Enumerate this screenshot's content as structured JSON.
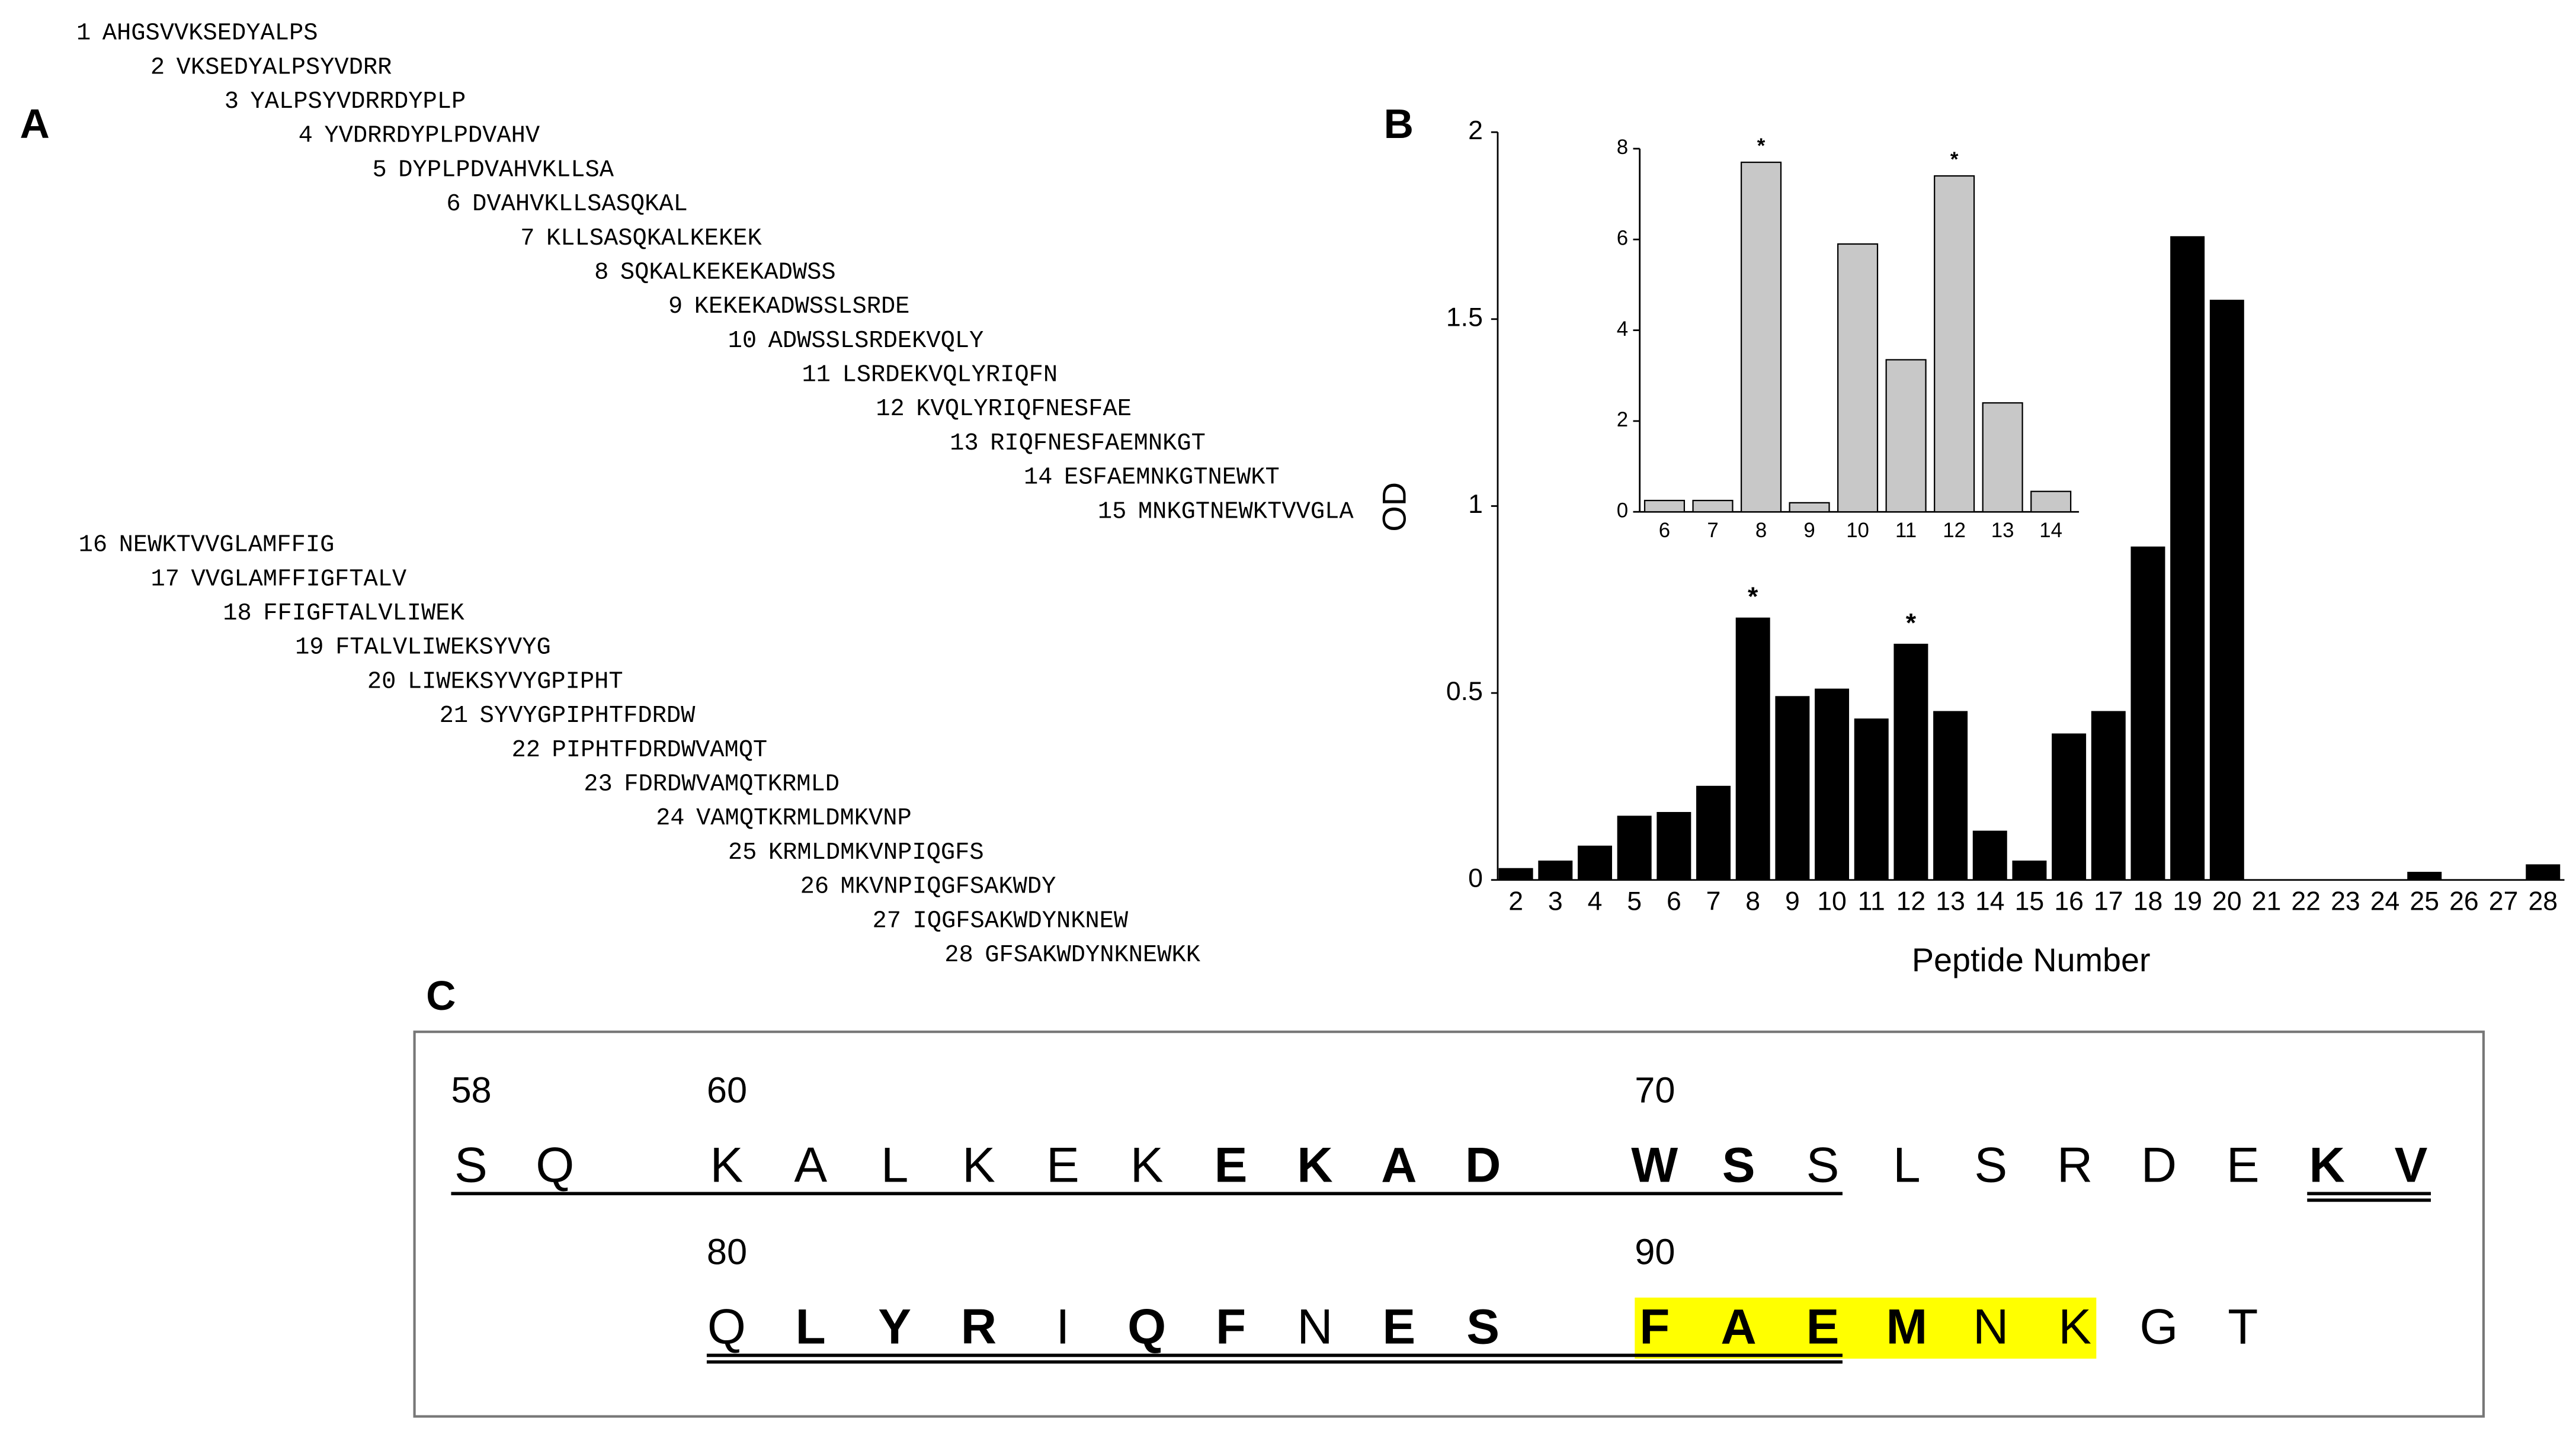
{
  "panel_a": {
    "label": "A",
    "peptides": [
      {
        "number": 1,
        "sequence": "AHGSVVKSEDYALPS"
      },
      {
        "number": 2,
        "sequence": "VKSEDYALPSYVDRR"
      },
      {
        "number": 3,
        "sequence": "YALPSYVDRRDYPLP"
      },
      {
        "number": 4,
        "sequence": "YVDRRDYPLPDVAHV"
      },
      {
        "number": 5,
        "sequence": "DYPLPDVAHVKLLSA"
      },
      {
        "number": 6,
        "sequence": "DVAHVKLLSASQKAL"
      },
      {
        "number": 7,
        "sequence": "KLLSASQKALKEKEK"
      },
      {
        "number": 8,
        "sequence": "SQKALKEKEKADWSS"
      },
      {
        "number": 9,
        "sequence": "KEKEKADWSSLSRDE"
      },
      {
        "number": 10,
        "sequence": "ADWSSLSRDEKVQLY"
      },
      {
        "number": 11,
        "sequence": "LSRDEKVQLYRIQFN"
      },
      {
        "number": 12,
        "sequence": "KVQLYRIQFNESFAE"
      },
      {
        "number": 13,
        "sequence": "RIQFNESFAEMNKGT"
      },
      {
        "number": 14,
        "sequence": "ESFAEMNKGTNEWKT"
      },
      {
        "number": 15,
        "sequence": "MNKGTNEWKTVVGLA"
      },
      {
        "number": 16,
        "sequence": "NEWKTVVGLAMFFIG"
      },
      {
        "number": 17,
        "sequence": "VVGLAMFFIGFTALV"
      },
      {
        "number": 18,
        "sequence": "FFIGFTALVLIWEK"
      },
      {
        "number": 19,
        "sequence": "FTALVLIWEKSYVYG"
      },
      {
        "number": 20,
        "sequence": "LIWEKSYVYGPIPHT"
      },
      {
        "number": 21,
        "sequence": "SYVYGPIPHTFDRDW"
      },
      {
        "number": 22,
        "sequence": "PIPHTFDRDWVAMQT"
      },
      {
        "number": 23,
        "sequence": "FDRDWVAMQTKRMLD"
      },
      {
        "number": 24,
        "sequence": "VAMQTKRMLDMKVNP"
      },
      {
        "number": 25,
        "sequence": "KRMLDMKVNPIQGFS"
      },
      {
        "number": 26,
        "sequence": "MKVNPIQGFSAKWDY"
      },
      {
        "number": 27,
        "sequence": "IQGFSAKWDYNKNEW"
      },
      {
        "number": 28,
        "sequence": "GFSAKWDYNKNEWKK"
      }
    ]
  },
  "chart_data": [
    {
      "type": "bar",
      "panel_label": "B",
      "xlabel": "Peptide Number",
      "ylabel": "OD",
      "categories": [
        "2",
        "3",
        "4",
        "5",
        "6",
        "7",
        "8",
        "9",
        "10",
        "11",
        "12",
        "13",
        "14",
        "15",
        "16",
        "17",
        "18",
        "19",
        "20",
        "21",
        "22",
        "23",
        "24",
        "25",
        "26",
        "27",
        "28"
      ],
      "values": [
        0.03,
        0.05,
        0.09,
        0.17,
        0.18,
        0.25,
        0.7,
        0.49,
        0.51,
        0.43,
        0.63,
        0.45,
        0.13,
        0.05,
        0.39,
        0.45,
        0.89,
        1.72,
        1.55,
        0,
        0,
        0,
        0,
        0.02,
        0,
        0,
        0.04
      ],
      "color": "#000000",
      "edgecolor": "#000000",
      "ylim": [
        0,
        2
      ],
      "yticks": [
        0,
        0.5,
        1,
        1.5,
        2
      ],
      "annotations": [
        {
          "text": "*",
          "category": "8"
        },
        {
          "text": "*",
          "category": "12"
        }
      ]
    },
    {
      "type": "bar",
      "categories": [
        "6",
        "7",
        "8",
        "9",
        "10",
        "11",
        "12",
        "13",
        "14"
      ],
      "values": [
        0.25,
        0.25,
        7.7,
        0.2,
        5.9,
        3.35,
        7.4,
        2.4,
        0.45
      ],
      "color": "#c8c8c8",
      "edgecolor": "#000000",
      "ylim": [
        0,
        8
      ],
      "yticks": [
        0,
        2,
        4,
        6,
        8
      ],
      "annotations": [
        {
          "text": "*",
          "category": "8"
        },
        {
          "text": "*",
          "category": "12"
        }
      ]
    }
  ],
  "panel_c": {
    "label": "C",
    "rows": [
      {
        "residues": [
          {
            "letter": "S",
            "number": 58,
            "bold": false,
            "underline": "single",
            "highlight": false
          },
          {
            "letter": "Q",
            "bold": false,
            "underline": "single",
            "highlight": false
          },
          {
            "letter": "K",
            "number": 60,
            "bold": false,
            "underline": "single",
            "highlight": false
          },
          {
            "letter": "A",
            "bold": false,
            "underline": "single",
            "highlight": false
          },
          {
            "letter": "L",
            "bold": false,
            "underline": "single",
            "highlight": false
          },
          {
            "letter": "K",
            "bold": false,
            "underline": "single",
            "highlight": false
          },
          {
            "letter": "E",
            "bold": false,
            "underline": "single",
            "highlight": false
          },
          {
            "letter": "K",
            "bold": false,
            "underline": "single",
            "highlight": false
          },
          {
            "letter": "E",
            "bold": true,
            "underline": "single",
            "highlight": false
          },
          {
            "letter": "K",
            "bold": true,
            "underline": "single",
            "highlight": false
          },
          {
            "letter": "A",
            "bold": true,
            "underline": "single",
            "highlight": false
          },
          {
            "letter": "D",
            "bold": true,
            "underline": "single",
            "highlight": false
          },
          {
            "letter": "W",
            "number": 70,
            "bold": true,
            "underline": "single",
            "highlight": false
          },
          {
            "letter": "S",
            "bold": true,
            "underline": "single",
            "highlight": false
          },
          {
            "letter": "S",
            "bold": false,
            "underline": "single",
            "highlight": false
          },
          {
            "letter": "L",
            "bold": false,
            "underline": null,
            "highlight": false
          },
          {
            "letter": "S",
            "bold": false,
            "underline": null,
            "highlight": false
          },
          {
            "letter": "R",
            "bold": false,
            "underline": null,
            "highlight": false
          },
          {
            "letter": "D",
            "bold": false,
            "underline": null,
            "highlight": false
          },
          {
            "letter": "E",
            "bold": false,
            "underline": null,
            "highlight": false
          },
          {
            "letter": "K",
            "bold": true,
            "underline": "double",
            "highlight": false
          },
          {
            "letter": "V",
            "bold": true,
            "underline": "double",
            "highlight": false
          }
        ]
      },
      {
        "residues": [
          {
            "letter": "Q",
            "number": 80,
            "bold": false,
            "underline": "double",
            "highlight": false
          },
          {
            "letter": "L",
            "bold": true,
            "underline": "double",
            "highlight": false
          },
          {
            "letter": "Y",
            "bold": true,
            "underline": "double",
            "highlight": false
          },
          {
            "letter": "R",
            "bold": true,
            "underline": "double",
            "highlight": false
          },
          {
            "letter": "I",
            "bold": false,
            "underline": "double",
            "highlight": false
          },
          {
            "letter": "Q",
            "bold": true,
            "underline": "double",
            "highlight": false
          },
          {
            "letter": "F",
            "bold": true,
            "underline": "double",
            "highlight": false
          },
          {
            "letter": "N",
            "bold": false,
            "underline": "double",
            "highlight": false
          },
          {
            "letter": "E",
            "bold": true,
            "underline": "double",
            "highlight": false
          },
          {
            "letter": "S",
            "bold": true,
            "underline": "double",
            "highlight": false
          },
          {
            "letter": "F",
            "number": 90,
            "bold": true,
            "underline": "double",
            "highlight": true
          },
          {
            "letter": "A",
            "bold": true,
            "underline": "double",
            "highlight": true
          },
          {
            "letter": "E",
            "bold": true,
            "underline": "double",
            "highlight": true
          },
          {
            "letter": "M",
            "bold": true,
            "underline": null,
            "highlight": true
          },
          {
            "letter": "N",
            "bold": false,
            "underline": null,
            "highlight": true
          },
          {
            "letter": "K",
            "bold": false,
            "underline": null,
            "highlight": true
          },
          {
            "letter": "G",
            "bold": false,
            "underline": null,
            "highlight": false
          },
          {
            "letter": "T",
            "bold": false,
            "underline": null,
            "highlight": false
          }
        ]
      }
    ]
  }
}
